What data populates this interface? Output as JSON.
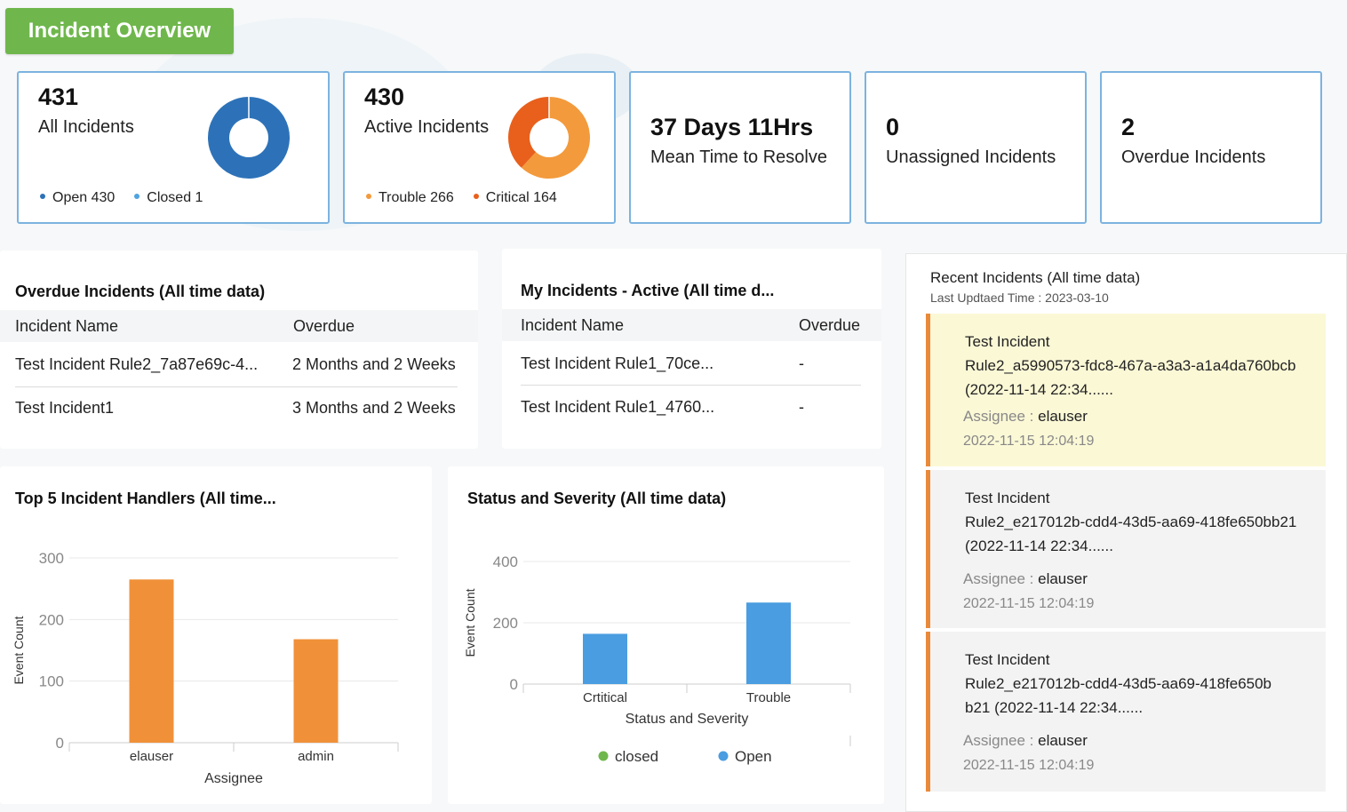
{
  "header": {
    "title": "Incident Overview"
  },
  "kpis": {
    "all": {
      "value": "431",
      "label": "All Incidents",
      "legend": [
        {
          "label": "Open 430",
          "color": "#2d72b8"
        },
        {
          "label": "Closed 1",
          "color": "#4fa3e0"
        }
      ]
    },
    "active": {
      "value": "430",
      "label": "Active Incidents",
      "legend": [
        {
          "label": "Trouble 266",
          "color": "#f39a3c"
        },
        {
          "label": "Critical 164",
          "color": "#e8601c"
        }
      ]
    },
    "mttr": {
      "value": "37 Days  11Hrs",
      "label": "Mean Time to Resolve"
    },
    "unassigned": {
      "value": "0",
      "label": "Unassigned Incidents"
    },
    "overdue": {
      "value": "2",
      "label": "Overdue Incidents"
    }
  },
  "overdue_panel": {
    "title": "Overdue Incidents (All time data)",
    "columns": [
      "Incident Name",
      "Overdue"
    ],
    "rows": [
      [
        "Test Incident Rule2_7a87e69c-4...",
        "2 Months and 2 Weeks"
      ],
      [
        "Test Incident1",
        "3 Months and 2 Weeks"
      ]
    ]
  },
  "my_panel": {
    "title": "My Incidents - Active (All time d...",
    "columns": [
      "Incident Name",
      "Overdue"
    ],
    "rows": [
      [
        "Test Incident Rule1_70ce...",
        "-"
      ],
      [
        "Test Incident Rule1_4760...",
        "-"
      ]
    ]
  },
  "handlers_panel": {
    "title": "Top 5 Incident Handlers (All time..."
  },
  "status_panel": {
    "title": "Status and Severity (All time data)"
  },
  "recent": {
    "title": "Recent Incidents (All time data)",
    "updated": "Last Updtaed Time : 2023-03-10",
    "assignee_label": "Assignee : ",
    "items": [
      {
        "line1": "Test Incident",
        "line2": "Rule2_a5990573-fdc8-467a-a3a3-a1a4da760bcb",
        "line3": "(2022-11-14 22:34......",
        "assignee": "elauser",
        "time": "2022-11-15 12:04:19"
      },
      {
        "line1": "Test Incident",
        "line2": "Rule2_e217012b-cdd4-43d5-aa69-418fe650bb21",
        "line3": "(2022-11-14 22:34......",
        "assignee": "elauser",
        "time": "2022-11-15 12:04:19"
      },
      {
        "line1": "Test Incident",
        "line2": "Rule2_e217012b-cdd4-43d5-aa69-418fe650b",
        "line3": "b21 (2022-11-14 22:34......",
        "assignee": "elauser",
        "time": "2022-11-15 12:04:19"
      }
    ]
  },
  "chart_data": [
    {
      "type": "donut",
      "categories": [
        "Open",
        "Closed"
      ],
      "values": [
        430,
        1
      ],
      "colors": [
        "#2d72b8",
        "#4fa3e0"
      ]
    },
    {
      "type": "donut",
      "categories": [
        "Trouble",
        "Critical"
      ],
      "values": [
        266,
        164
      ],
      "colors": [
        "#f39a3c",
        "#e8601c"
      ]
    },
    {
      "type": "bar",
      "categories": [
        "elauser",
        "admin"
      ],
      "series": [
        {
          "values": [
            265,
            168
          ],
          "color": "#f0913a"
        }
      ],
      "xlabel": "Assignee",
      "ylabel": "Event Count",
      "ylim": [
        0,
        300
      ],
      "yticks": [
        0,
        100,
        200,
        300
      ],
      "grid": true
    },
    {
      "type": "bar",
      "categories": [
        "Crtitical",
        "Trouble"
      ],
      "series": [
        {
          "name": "closed",
          "values": [
            0,
            0
          ],
          "color": "#6fb74c"
        },
        {
          "name": "Open",
          "values": [
            164,
            266
          ],
          "color": "#4a9de0"
        }
      ],
      "xlabel": "Status and Severity",
      "ylabel": "Event Count",
      "ylim": [
        0,
        400
      ],
      "yticks": [
        0,
        200,
        400
      ],
      "grid": true,
      "legend": "bottom"
    }
  ]
}
